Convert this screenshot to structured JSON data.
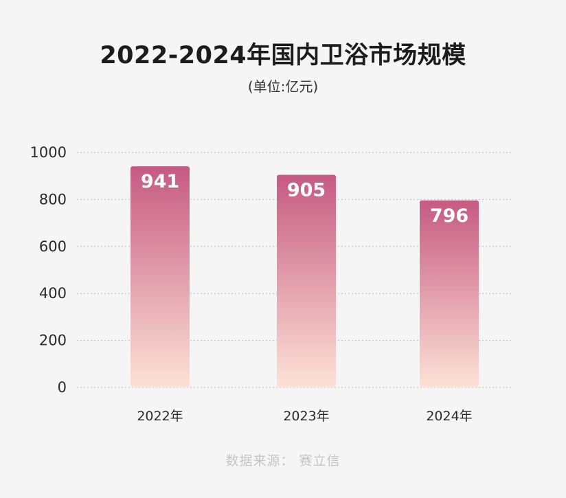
{
  "header": {
    "title": "2022-2024年国内卫浴市场规模",
    "subtitle": "(单位:亿元)"
  },
  "footer": {
    "source": "数据来源：  赛立信"
  },
  "colors": {
    "bar_top": "#c65a82",
    "bar_bottom": "#fde2d6",
    "grid": "#b8b8b8",
    "axis_text": "#2a2a2a",
    "value_text": "#ffffff"
  },
  "chart_data": {
    "type": "bar",
    "title": "2022-2024年国内卫浴市场规模",
    "subtitle": "(单位:亿元)",
    "categories": [
      "2022年",
      "2023年",
      "2024年"
    ],
    "values": [
      941,
      905,
      796
    ],
    "ylim": [
      0,
      1000
    ],
    "yticks": [
      0,
      200,
      400,
      600,
      800,
      1000
    ],
    "grid": true,
    "data_labels": true
  }
}
